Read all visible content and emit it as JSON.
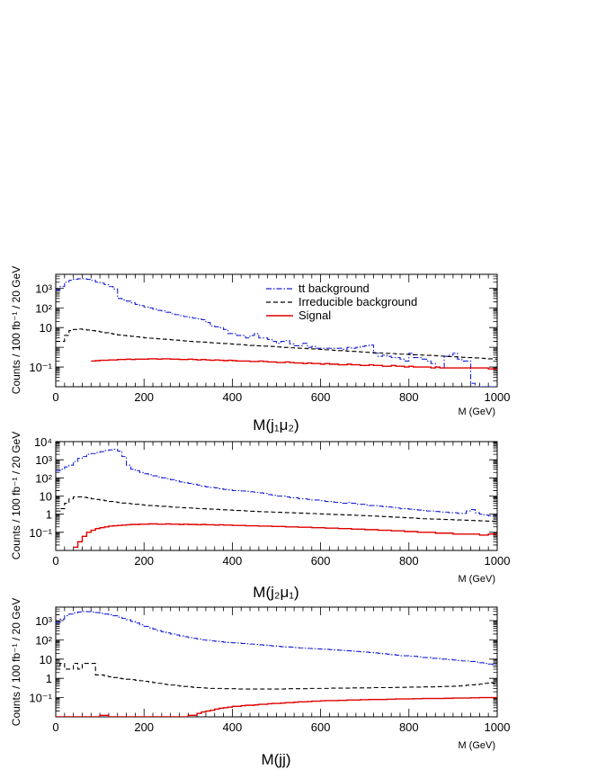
{
  "chart_data": [
    {
      "type": "line",
      "step": true,
      "title": "",
      "xlabel": "M(j₁μ₂)",
      "xunit": "M (GeV)",
      "ylabel": "Counts / 100 fb⁻¹ / 20 GeV",
      "xlim": [
        0,
        1000
      ],
      "ylog": true,
      "ylim_exp": [
        -2,
        3.7
      ],
      "x_ticks": [
        "0",
        "200",
        "400",
        "600",
        "800",
        "1000"
      ],
      "y_ticks": [
        {
          "v": 0.1,
          "label": "10⁻¹"
        },
        {
          "v": 10,
          "label": "10"
        },
        {
          "v": 100,
          "label": "10²"
        },
        {
          "v": 1000,
          "label": "10³"
        }
      ],
      "legend": {
        "position": "top-right",
        "entries": [
          {
            "label": "tt background",
            "series": 0
          },
          {
            "label": "Irreducible background",
            "series": 1
          },
          {
            "label": "Signal",
            "series": 2
          }
        ]
      },
      "series": [
        {
          "color": "#1a22d8",
          "dash": "6 2 1.5 2",
          "x_start": 0,
          "values": [
            800,
            1200,
            2000,
            2500,
            2800,
            3000,
            3000,
            2800,
            2500,
            2000,
            1800,
            1500,
            1200,
            900,
            300,
            250,
            220,
            180,
            150,
            130,
            110,
            100,
            85,
            75,
            70,
            60,
            50,
            45,
            40,
            36,
            33,
            30,
            28,
            25,
            18,
            12,
            11,
            10,
            8,
            5,
            5,
            4,
            4,
            3,
            4,
            5,
            3,
            3,
            2.5,
            2,
            1.6,
            2,
            2.2,
            1.5,
            1.2,
            1.2,
            1.6,
            1,
            1.1,
            0.9,
            0.9,
            0.9,
            0.9,
            0.9,
            0.9,
            0.8,
            1,
            0.9,
            1,
            1.1,
            1.2,
            1.3,
            0.5,
            0.35,
            0.4,
            0.35,
            0.3,
            0.3,
            0.25,
            0.2,
            0.5,
            0.3,
            0.3,
            0.25,
            0.2,
            0.15,
            0.1,
            0.09,
            0.35,
            0.4,
            0.5,
            0.25,
            0.2,
            0.2,
            0.015,
            0.01,
            0.01,
            0.01,
            0.01,
            0.01,
            0.01,
            0.01
          ]
        },
        {
          "color": "#000000",
          "dash": "5 3",
          "x_start": 0,
          "values": [
            2,
            2,
            4,
            7,
            8,
            8.5,
            8,
            7.5,
            7,
            6.5,
            6,
            5.5,
            5,
            4.6,
            4.2,
            4,
            3.8,
            3.6,
            3.4,
            3.2,
            3,
            2.9,
            2.8,
            2.7,
            2.6,
            2.5,
            2.4,
            2.3,
            2.2,
            2.1,
            2,
            1.95,
            1.9,
            1.85,
            1.8,
            1.7,
            1.65,
            1.6,
            1.55,
            1.5,
            1.45,
            1.4,
            1.35,
            1.3,
            1.25,
            1.2,
            1.18,
            1.15,
            1.12,
            1.1,
            1.05,
            1,
            0.98,
            0.95,
            0.92,
            0.9,
            0.88,
            0.85,
            0.83,
            0.8,
            0.78,
            0.75,
            0.73,
            0.7,
            0.68,
            0.66,
            0.64,
            0.62,
            0.6,
            0.58,
            0.56,
            0.55,
            0.53,
            0.52,
            0.5,
            0.49,
            0.48,
            0.46,
            0.45,
            0.44,
            0.43,
            0.42,
            0.41,
            0.4,
            0.39,
            0.38,
            0.37,
            0.36,
            0.35,
            0.34,
            0.33,
            0.32,
            0.31,
            0.3,
            0.3,
            0.29,
            0.28,
            0.27,
            0.26,
            0.25
          ]
        },
        {
          "color": "#e00000",
          "dash": "",
          "x_start": 80,
          "values": [
            0.2,
            0.21,
            0.22,
            0.22,
            0.23,
            0.23,
            0.24,
            0.24,
            0.25,
            0.24,
            0.25,
            0.25,
            0.25,
            0.26,
            0.26,
            0.25,
            0.26,
            0.26,
            0.25,
            0.25,
            0.24,
            0.24,
            0.25,
            0.24,
            0.23,
            0.24,
            0.23,
            0.22,
            0.23,
            0.22,
            0.21,
            0.22,
            0.21,
            0.2,
            0.2,
            0.2,
            0.19,
            0.19,
            0.2,
            0.19,
            0.18,
            0.18,
            0.17,
            0.17,
            0.18,
            0.17,
            0.16,
            0.16,
            0.15,
            0.16,
            0.15,
            0.15,
            0.14,
            0.15,
            0.14,
            0.14,
            0.13,
            0.13,
            0.14,
            0.13,
            0.13,
            0.12,
            0.12,
            0.13,
            0.12,
            0.12,
            0.11,
            0.11,
            0.12,
            0.11,
            0.11,
            0.1,
            0.11,
            0.1,
            0.1,
            0.1,
            0.1,
            0.09,
            0.1,
            0.09,
            0.09,
            0.09,
            0.09,
            0.09,
            0.09,
            0.09,
            0.09,
            0.09,
            0.09,
            0.09,
            0.08,
            0.08
          ]
        }
      ]
    },
    {
      "type": "line",
      "step": true,
      "title": "",
      "xlabel": "M(j₂μ₁)",
      "xunit": "M (GeV)",
      "ylabel": "Counts / 100 fb⁻¹ / 20 GeV",
      "xlim": [
        0,
        1000
      ],
      "ylog": true,
      "ylim_exp": [
        -2,
        4
      ],
      "x_ticks": [
        "0",
        "200",
        "400",
        "600",
        "800",
        "1000"
      ],
      "y_ticks": [
        {
          "v": 0.1,
          "label": "10⁻¹"
        },
        {
          "v": 1,
          "label": "1"
        },
        {
          "v": 10,
          "label": "10"
        },
        {
          "v": 100,
          "label": "10²"
        },
        {
          "v": 1000,
          "label": "10³"
        },
        {
          "v": 10000,
          "label": "10⁴"
        }
      ],
      "series": [
        {
          "color": "#1a22d8",
          "dash": "6 2 1.5 2",
          "x_start": 0,
          "values": [
            250,
            300,
            400,
            500,
            800,
            1200,
            1500,
            2000,
            2200,
            2500,
            2800,
            3200,
            3500,
            3800,
            3000,
            1500,
            500,
            300,
            250,
            200,
            170,
            150,
            130,
            110,
            100,
            90,
            80,
            70,
            60,
            55,
            50,
            45,
            40,
            35,
            32,
            30,
            28,
            25,
            23,
            22,
            20,
            20,
            19,
            18,
            17,
            16,
            15,
            14,
            12,
            11,
            10,
            10,
            9,
            8,
            8,
            7,
            7,
            6.5,
            6,
            6,
            5.5,
            5,
            5,
            4.5,
            4.5,
            4,
            4.5,
            4,
            3.5,
            3.5,
            3.2,
            3,
            3,
            2.8,
            2.6,
            2.5,
            2.4,
            2.2,
            2,
            2,
            1.9,
            1.8,
            1.7,
            1.6,
            1.5,
            1.5,
            1.4,
            1.3,
            1.3,
            1.2,
            1.2,
            1.1,
            1.1,
            1.5,
            1.8,
            1.2,
            1,
            0.9,
            0.8,
            0.8
          ]
        },
        {
          "color": "#000000",
          "dash": "5 3",
          "x_start": 0,
          "values": [
            1.5,
            2,
            4,
            7,
            9,
            9,
            8.5,
            8,
            7,
            6.5,
            6,
            5.5,
            5,
            4.7,
            4.4,
            4.1,
            3.9,
            3.7,
            3.5,
            3.3,
            3.1,
            3,
            2.9,
            2.8,
            2.7,
            2.6,
            2.5,
            2.4,
            2.3,
            2.25,
            2.2,
            2.1,
            2.05,
            2,
            1.95,
            1.9,
            1.85,
            1.8,
            1.75,
            1.7,
            1.65,
            1.6,
            1.55,
            1.5,
            1.45,
            1.4,
            1.38,
            1.35,
            1.32,
            1.3,
            1.27,
            1.25,
            1.22,
            1.2,
            1.17,
            1.15,
            1.12,
            1.1,
            1.08,
            1.05,
            1.03,
            1,
            0.98,
            0.96,
            0.94,
            0.92,
            0.9,
            0.88,
            0.86,
            0.84,
            0.82,
            0.8,
            0.78,
            0.76,
            0.74,
            0.72,
            0.7,
            0.68,
            0.66,
            0.64,
            0.62,
            0.6,
            0.58,
            0.56,
            0.55,
            0.54,
            0.53,
            0.52,
            0.51,
            0.5,
            0.49,
            0.48,
            0.47,
            0.46,
            0.45,
            0.44,
            0.43,
            0.42,
            0.41,
            0.4
          ]
        },
        {
          "color": "#e00000",
          "dash": "",
          "x_start": 40,
          "values": [
            0.015,
            0.03,
            0.06,
            0.1,
            0.13,
            0.16,
            0.18,
            0.2,
            0.22,
            0.23,
            0.24,
            0.25,
            0.26,
            0.27,
            0.27,
            0.28,
            0.28,
            0.29,
            0.29,
            0.28,
            0.28,
            0.29,
            0.28,
            0.28,
            0.27,
            0.28,
            0.27,
            0.27,
            0.26,
            0.27,
            0.26,
            0.26,
            0.25,
            0.26,
            0.25,
            0.25,
            0.24,
            0.24,
            0.24,
            0.23,
            0.23,
            0.23,
            0.22,
            0.22,
            0.22,
            0.21,
            0.21,
            0.21,
            0.2,
            0.2,
            0.2,
            0.19,
            0.19,
            0.19,
            0.18,
            0.18,
            0.18,
            0.17,
            0.17,
            0.17,
            0.16,
            0.16,
            0.16,
            0.15,
            0.15,
            0.15,
            0.14,
            0.14,
            0.14,
            0.13,
            0.13,
            0.13,
            0.12,
            0.12,
            0.12,
            0.11,
            0.11,
            0.11,
            0.1,
            0.1,
            0.1,
            0.1,
            0.09,
            0.09,
            0.09,
            0.09,
            0.08,
            0.08,
            0.08,
            0.08,
            0.08,
            0.08,
            0.07,
            0.07,
            0.08,
            0.08,
            0.08,
            0.08
          ]
        }
      ]
    },
    {
      "type": "line",
      "step": true,
      "title": "",
      "xlabel": "M(jj)",
      "xunit": "M (GeV)",
      "ylabel": "Counts / 100 fb⁻¹ / 20 GeV",
      "xlim": [
        0,
        1000
      ],
      "ylog": true,
      "ylim_exp": [
        -2,
        3.7
      ],
      "x_ticks": [
        "0",
        "200",
        "400",
        "600",
        "800",
        "1000"
      ],
      "y_ticks": [
        {
          "v": 0.1,
          "label": "10⁻¹"
        },
        {
          "v": 1,
          "label": "1"
        },
        {
          "v": 10,
          "label": "10"
        },
        {
          "v": 100,
          "label": "10²"
        },
        {
          "v": 1000,
          "label": "10³"
        }
      ],
      "series": [
        {
          "color": "#1a22d8",
          "dash": "6 2 1.5 2",
          "x_start": 0,
          "values": [
            800,
            1200,
            1800,
            2200,
            2500,
            2800,
            3000,
            2900,
            2800,
            2600,
            2400,
            2200,
            2000,
            1800,
            1500,
            1300,
            1100,
            900,
            750,
            600,
            500,
            420,
            360,
            300,
            260,
            230,
            200,
            180,
            160,
            145,
            130,
            120,
            110,
            100,
            95,
            90,
            85,
            80,
            75,
            72,
            70,
            68,
            65,
            62,
            60,
            58,
            55,
            53,
            50,
            48,
            46,
            44,
            43,
            42,
            40,
            38,
            37,
            36,
            35,
            34,
            33,
            32,
            31,
            30,
            29,
            28,
            27,
            26,
            25,
            24,
            23,
            22,
            21,
            20,
            19,
            18,
            17,
            16,
            15,
            15,
            14,
            14,
            13,
            12,
            12,
            11,
            11,
            10,
            10,
            9.5,
            9,
            8.5,
            8,
            8,
            7.5,
            7,
            6.5,
            6,
            5.5,
            5
          ]
        },
        {
          "color": "#000000",
          "dash": "5 3",
          "x_start": 0,
          "values": [
            3,
            6,
            3,
            3,
            6,
            3,
            6,
            6,
            6,
            1.5,
            1.5,
            1.3,
            1.2,
            1.1,
            1,
            0.95,
            0.9,
            0.85,
            0.8,
            0.75,
            0.7,
            0.65,
            0.6,
            0.55,
            0.5,
            0.48,
            0.45,
            0.42,
            0.4,
            0.38,
            0.36,
            0.34,
            0.33,
            0.32,
            0.31,
            0.3,
            0.3,
            0.3,
            0.29,
            0.29,
            0.29,
            0.28,
            0.28,
            0.28,
            0.28,
            0.28,
            0.28,
            0.28,
            0.28,
            0.28,
            0.28,
            0.28,
            0.29,
            0.29,
            0.29,
            0.29,
            0.29,
            0.3,
            0.3,
            0.3,
            0.3,
            0.3,
            0.31,
            0.31,
            0.31,
            0.31,
            0.31,
            0.32,
            0.32,
            0.32,
            0.32,
            0.32,
            0.33,
            0.33,
            0.33,
            0.33,
            0.33,
            0.34,
            0.34,
            0.34,
            0.35,
            0.35,
            0.35,
            0.36,
            0.36,
            0.36,
            0.37,
            0.37,
            0.38,
            0.38,
            0.39,
            0.4,
            0.42,
            0.44,
            0.46,
            0.48,
            0.5,
            0.55,
            0.6,
            0.55
          ]
        },
        {
          "color": "#e00000",
          "dash": "",
          "x_start": 0,
          "values": [
            0.01,
            0.01,
            0.01,
            0.01,
            0.01,
            0.01,
            0.01,
            0.01,
            0.01,
            0.01,
            0.012,
            0.012,
            0.01,
            0.01,
            0.01,
            0.01,
            0.01,
            0.01,
            0.01,
            0.01,
            0.01,
            0.01,
            0.01,
            0.01,
            0.01,
            0.01,
            0.01,
            0.01,
            0.01,
            0.01,
            0.012,
            0.012,
            0.015,
            0.018,
            0.02,
            0.022,
            0.025,
            0.028,
            0.03,
            0.032,
            0.035,
            0.035,
            0.038,
            0.04,
            0.04,
            0.042,
            0.045,
            0.045,
            0.048,
            0.05,
            0.05,
            0.052,
            0.055,
            0.055,
            0.058,
            0.06,
            0.06,
            0.062,
            0.065,
            0.065,
            0.068,
            0.07,
            0.07,
            0.07,
            0.072,
            0.072,
            0.075,
            0.075,
            0.075,
            0.078,
            0.078,
            0.08,
            0.08,
            0.08,
            0.08,
            0.082,
            0.082,
            0.085,
            0.085,
            0.085,
            0.085,
            0.088,
            0.088,
            0.09,
            0.09,
            0.09,
            0.09,
            0.09,
            0.092,
            0.092,
            0.095,
            0.095,
            0.095,
            0.095,
            0.098,
            0.098,
            0.1,
            0.1,
            0.1,
            0.1
          ]
        }
      ]
    }
  ]
}
